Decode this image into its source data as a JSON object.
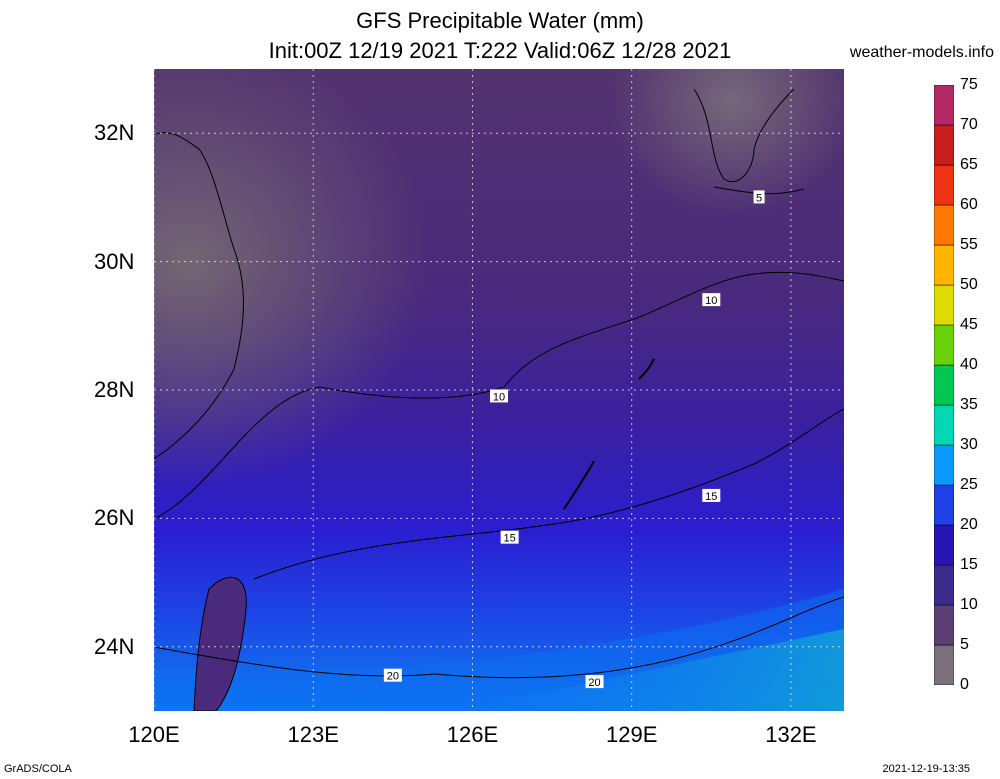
{
  "title_line1": "GFS Precipitable Water (mm)",
  "title_line2": "Init:00Z 12/19 2021 T:222 Valid:06Z 12/28 2021",
  "site": "weather-models.info",
  "footer_left": "GrADS/COLA",
  "footer_right": "2021-12-19-13:35",
  "map": {
    "lon_range": [
      120,
      133
    ],
    "lat_range": [
      23,
      33
    ],
    "lon_ticks": [
      {
        "value": 120,
        "label": "120E"
      },
      {
        "value": 123,
        "label": "123E"
      },
      {
        "value": 126,
        "label": "126E"
      },
      {
        "value": 129,
        "label": "129E"
      },
      {
        "value": 132,
        "label": "132E"
      }
    ],
    "lat_ticks": [
      {
        "value": 24,
        "label": "24N"
      },
      {
        "value": 26,
        "label": "26N"
      },
      {
        "value": 28,
        "label": "28N"
      },
      {
        "value": 30,
        "label": "30N"
      },
      {
        "value": 32,
        "label": "32N"
      }
    ],
    "contour_labels": [
      {
        "text": "5",
        "lon": 131.4,
        "lat": 31.0
      },
      {
        "text": "10",
        "lon": 130.5,
        "lat": 29.4
      },
      {
        "text": "10",
        "lon": 126.5,
        "lat": 27.9
      },
      {
        "text": "15",
        "lon": 130.5,
        "lat": 26.35
      },
      {
        "text": "15",
        "lon": 126.7,
        "lat": 25.7
      },
      {
        "text": "20",
        "lon": 124.5,
        "lat": 23.55
      },
      {
        "text": "20",
        "lon": 128.3,
        "lat": 23.45
      }
    ]
  },
  "colorbar": {
    "min": 0,
    "max": 75,
    "labels": [
      "0",
      "5",
      "10",
      "15",
      "20",
      "25",
      "30",
      "35",
      "40",
      "45",
      "50",
      "55",
      "60",
      "65",
      "70",
      "75"
    ],
    "colors": [
      "#7a6f7a",
      "#5c3d74",
      "#3a2a8a",
      "#2814b4",
      "#1e40e6",
      "#0a9aff",
      "#00d8b4",
      "#00c850",
      "#6ad20a",
      "#dcdc00",
      "#ffb400",
      "#ff7800",
      "#f03214",
      "#c81e1e",
      "#b42864",
      "#e632c8"
    ]
  }
}
